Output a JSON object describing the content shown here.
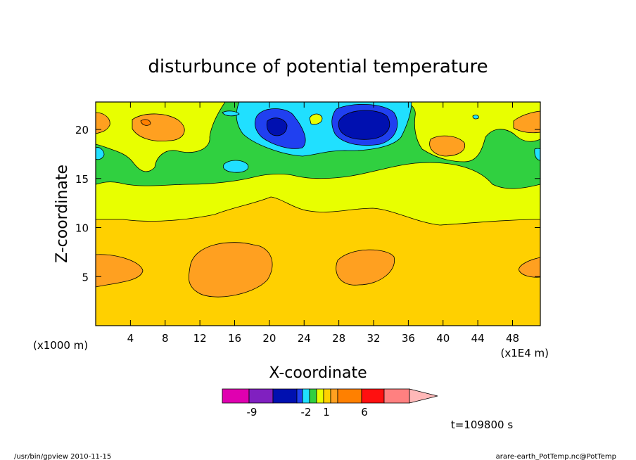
{
  "chart_data": {
    "type": "heatmap",
    "title": "disturbunce of potential temperature",
    "xlabel": "X-coordinate",
    "ylabel": "Z-coordinate",
    "x_units_left": "(x1000 m)",
    "x_units_right": "(x1E4 m)",
    "x_ticks": [
      4,
      8,
      12,
      16,
      20,
      24,
      28,
      32,
      36,
      40,
      44,
      48
    ],
    "y_ticks": [
      5,
      10,
      15,
      20
    ],
    "xlim": [
      0,
      51.2
    ],
    "ylim": [
      0,
      22.8
    ],
    "colorbar": {
      "labels": [
        "-9",
        "-2",
        "1",
        "6"
      ],
      "colors": [
        "#e000b0",
        "#8020c0",
        "#0010b0",
        "#2040f0",
        "#20e0ff",
        "#30d040",
        "#e8ff00",
        "#ffd000",
        "#ffa020",
        "#ff8000",
        "#ff1010",
        "#ff8080",
        "#ffb8b8"
      ]
    },
    "time_label": "t=109800 s"
  },
  "footer": {
    "left": "/usr/bin/gpview  2010-11-15",
    "right": "arare-earth_PotTemp.nc@PotTemp"
  }
}
